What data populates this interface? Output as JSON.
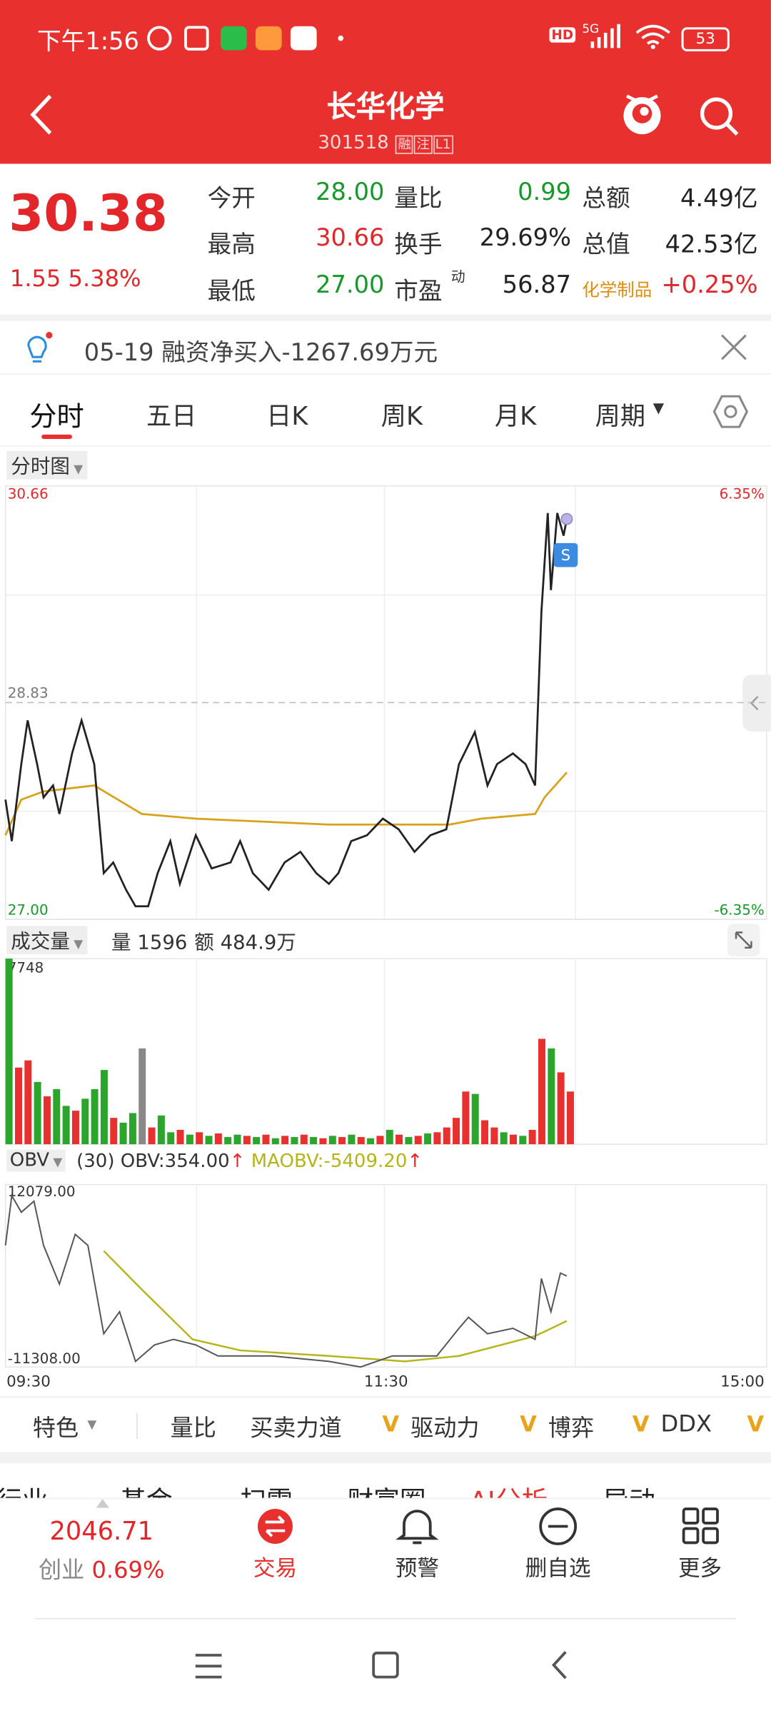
{
  "status_bar": {
    "time": "下午1:56",
    "hd": "HD",
    "network": "5G",
    "battery": "53"
  },
  "header": {
    "title": "长华化学",
    "code": "301518",
    "tags": [
      "融",
      "注",
      "L1"
    ]
  },
  "quote": {
    "price": "30.38",
    "change": "1.55",
    "change_pct": "5.38%",
    "rows": [
      [
        {
          "label": "今开",
          "value": "28.00"
        },
        {
          "label": "量比",
          "value": "0.99"
        },
        {
          "label": "总额",
          "value": "4.49亿"
        }
      ],
      [
        {
          "label": "最高",
          "value": "30.66"
        },
        {
          "label": "换手",
          "value": "29.69%"
        },
        {
          "label": "总值",
          "value": "42.53亿"
        }
      ],
      [
        {
          "label": "最低",
          "value": "27.00"
        },
        {
          "label": "市盈",
          "sup": "动",
          "value": "56.87"
        },
        {
          "label": "化学制品",
          "value": "+0.25%"
        }
      ]
    ]
  },
  "notice": "05-19 融资净买入-1267.69万元",
  "tabs": [
    "分时",
    "五日",
    "日K",
    "周K",
    "月K",
    "周期"
  ],
  "intraday": {
    "type": "line",
    "selector": "分时图",
    "signal": "S",
    "xlim": [
      0,
      240
    ],
    "xticks": [
      {
        "value": 0,
        "label": "09:30"
      },
      {
        "value": 120,
        "label": "11:30"
      },
      {
        "value": 240,
        "label": "15:00"
      }
    ],
    "ylim": [
      27.0,
      30.66
    ],
    "yticks": [
      30.66,
      28.83,
      {
        "value": 27.0,
        "label": "27.00"
      }
    ],
    "y2lim": [
      -6.35,
      6.35
    ],
    "y2ticks": [
      {
        "value": 6.35,
        "label": "6.35%"
      },
      {
        "value": -6.35,
        "label": "-6.35%"
      }
    ],
    "price": {
      "color": "#222222",
      "x": [
        0,
        2,
        5,
        7,
        10,
        12,
        15,
        17,
        21,
        24,
        28,
        31,
        34,
        38,
        41,
        45,
        48,
        52,
        55,
        60,
        65,
        71,
        74,
        78,
        83,
        88,
        93,
        98,
        102,
        105,
        109,
        114,
        119,
        124,
        129,
        134,
        139,
        143,
        148,
        152,
        155,
        160,
        164,
        167,
        169,
        171,
        172,
        174,
        176,
        177
      ],
      "values": [
        28.01,
        27.66,
        28.31,
        28.68,
        28.31,
        28.03,
        28.13,
        27.89,
        28.4,
        28.68,
        28.31,
        27.39,
        27.48,
        27.25,
        27.11,
        27.11,
        27.39,
        27.66,
        27.3,
        27.71,
        27.43,
        27.48,
        27.66,
        27.39,
        27.25,
        27.48,
        27.57,
        27.39,
        27.3,
        27.39,
        27.66,
        27.71,
        27.85,
        27.76,
        27.57,
        27.71,
        27.76,
        28.31,
        28.58,
        28.13,
        28.31,
        28.4,
        28.31,
        28.13,
        29.6,
        30.43,
        29.78,
        30.43,
        30.24,
        30.38
      ]
    },
    "average": {
      "color": "#d9a21b",
      "x": [
        0,
        5,
        12,
        28,
        43,
        60,
        102,
        140,
        150,
        167,
        170,
        177
      ],
      "values": [
        27.71,
        28.01,
        28.08,
        28.13,
        27.89,
        27.85,
        27.8,
        27.8,
        27.85,
        27.89,
        28.03,
        28.24
      ]
    }
  },
  "volume": {
    "type": "bar",
    "selector": "成交量",
    "volume_text": "量 1596",
    "amount_text": "额 484.9万",
    "ylim": [
      0,
      7748
    ],
    "yticks": [
      7748
    ],
    "x": [
      0,
      3,
      6,
      9,
      12,
      15,
      18,
      21,
      24,
      27,
      30,
      33,
      36,
      39,
      42,
      45,
      48,
      51,
      54,
      57,
      60,
      63,
      66,
      69,
      72,
      75,
      78,
      81,
      84,
      87,
      90,
      93,
      96,
      99,
      102,
      105,
      108,
      111,
      114,
      117,
      120,
      123,
      126,
      129,
      132,
      135,
      138,
      141,
      144,
      147,
      150,
      153,
      156,
      159,
      162,
      165,
      168,
      171,
      174,
      177
    ],
    "values": [
      7748,
      3200,
      3500,
      2600,
      2000,
      2300,
      1600,
      1400,
      1900,
      2300,
      3100,
      1100,
      900,
      1300,
      4000,
      700,
      1200,
      500,
      600,
      400,
      500,
      350,
      450,
      300,
      400,
      350,
      300,
      400,
      250,
      350,
      300,
      400,
      300,
      250,
      350,
      300,
      400,
      300,
      250,
      350,
      600,
      400,
      300,
      350,
      450,
      500,
      700,
      1100,
      2200,
      2100,
      1000,
      700,
      500,
      400,
      350,
      600,
      4400,
      4000,
      3000,
      2200
    ],
    "colors": [
      "#2ca52c",
      "#e8302f",
      "#e8302f",
      "#2ca52c",
      "#e8302f",
      "#2ca52c",
      "#2ca52c",
      "#e8302f",
      "#2ca52c",
      "#2ca52c",
      "#2ca52c",
      "#e8302f",
      "#2ca52c",
      "#2ca52c",
      "#888888",
      "#e8302f",
      "#2ca52c",
      "#2ca52c",
      "#e8302f",
      "#2ca52c",
      "#e8302f",
      "#2ca52c",
      "#e8302f",
      "#2ca52c",
      "#2ca52c",
      "#e8302f",
      "#2ca52c",
      "#e8302f",
      "#2ca52c",
      "#e8302f",
      "#2ca52c",
      "#e8302f",
      "#2ca52c",
      "#e8302f",
      "#2ca52c",
      "#e8302f",
      "#2ca52c",
      "#e8302f",
      "#2ca52c",
      "#e8302f",
      "#2ca52c",
      "#e8302f",
      "#2ca52c",
      "#e8302f",
      "#2ca52c",
      "#e8302f",
      "#e8302f",
      "#e8302f",
      "#e8302f",
      "#2ca52c",
      "#e8302f",
      "#e8302f",
      "#2ca52c",
      "#e8302f",
      "#2ca52c",
      "#e8302f",
      "#e8302f",
      "#2ca52c",
      "#e8302f",
      "#e8302f"
    ]
  },
  "obv": {
    "type": "line",
    "selector": "OBV",
    "obv_text": "(30) OBV:354.00",
    "maobv_text": "MAOBV:-5409.20",
    "arrow": "↑",
    "ylim": [
      -11308,
      12079
    ],
    "yticks": [
      {
        "value": 12079,
        "label": "12079.00"
      },
      {
        "value": -11308,
        "label": "-11308.00"
      }
    ],
    "obv": {
      "color": "#555555",
      "x": [
        0,
        2,
        5,
        9,
        12,
        17,
        22,
        26,
        31,
        36,
        41,
        47,
        53,
        60,
        67,
        84,
        102,
        112,
        122,
        136,
        143,
        146,
        152,
        160,
        167,
        169,
        172,
        175,
        177
      ],
      "values": [
        4283,
        10662,
        8535,
        9953,
        4283,
        -678,
        5701,
        4283,
        -7056,
        -4221,
        -10599,
        -8473,
        -7765,
        -8473,
        -9890,
        -9890,
        -10599,
        -11308,
        -9890,
        -9890,
        -6347,
        -4930,
        -7056,
        -6347,
        -7765,
        31,
        -4221,
        740,
        354
      ]
    },
    "maobv": {
      "color": "#b5b51a",
      "x": [
        31,
        43,
        59,
        74,
        102,
        126,
        143,
        167,
        177
      ],
      "values": [
        3575,
        -1386,
        -7765,
        -9182,
        -9890,
        -10599,
        -9890,
        -7340,
        -5409.2
      ]
    }
  },
  "indicators": {
    "menu": "特色",
    "v_mark": "V",
    "items": [
      "量比",
      "买卖力道",
      "驱动力",
      "博弈",
      "DDX"
    ]
  },
  "sections": [
    "行业",
    "基金",
    "扫雷",
    "财富圈",
    "AI分析",
    "异动"
  ],
  "bottom_nav": {
    "index_value": "2046.71",
    "index_name": "创业",
    "index_change": "0.69%",
    "items": [
      "交易",
      "预警",
      "删自选",
      "更多"
    ]
  }
}
